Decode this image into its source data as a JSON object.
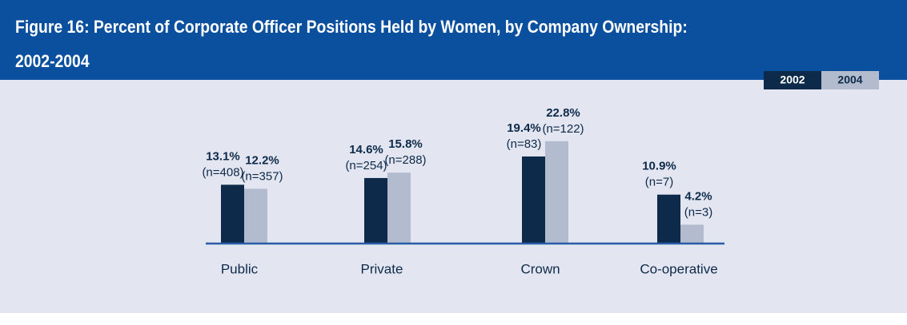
{
  "chart_data": {
    "type": "bar",
    "title": "Figure 16: Percent of Corporate Officer Positions Held by Women, by Company Ownership: 2002-2004",
    "categories": [
      "Public",
      "Private",
      "Crown",
      "Co-operative"
    ],
    "series": [
      {
        "name": "2002",
        "color": "#0d2a4a",
        "values": [
          13.1,
          14.6,
          19.4,
          10.9
        ],
        "value_labels": [
          "13.1%",
          "14.6%",
          "19.4%",
          "10.9%"
        ],
        "sample_labels": [
          "(n=408)",
          "(n=254)",
          "(n=83)",
          "(n=7)"
        ]
      },
      {
        "name": "2004",
        "color": "#b3bccf",
        "values": [
          12.2,
          15.8,
          22.8,
          4.2
        ],
        "value_labels": [
          "12.2%",
          "15.8%",
          "22.8%",
          "4.2%"
        ],
        "sample_labels": [
          "(n=357)",
          "(n=288)",
          "(n=122)",
          "(n=3)"
        ]
      }
    ]
  }
}
